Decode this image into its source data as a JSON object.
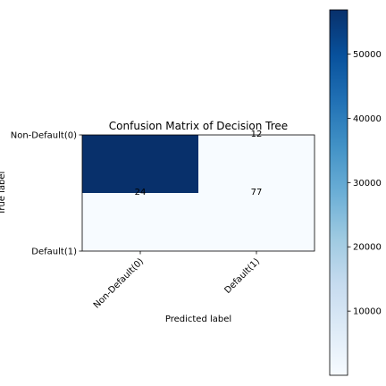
{
  "chart_data": {
    "type": "heatmap",
    "title": "Confusion Matrix of Decision Tree",
    "xlabel": "Predicted label",
    "ylabel": "True label",
    "x_categories": [
      "Non-Default(0)",
      "Default(1)"
    ],
    "y_categories": [
      "Non-Default(0)",
      "Default(1)"
    ],
    "matrix": [
      [
        56874,
        12
      ],
      [
        24,
        77
      ]
    ],
    "cell_labels": [
      [
        "",
        "12"
      ],
      [
        "24",
        "77"
      ]
    ],
    "colormap": "Blues",
    "color_low": "#f7fbff",
    "color_high": "#08306b",
    "colorbar": {
      "ticks": [
        10000,
        20000,
        30000,
        40000,
        50000
      ],
      "tick_labels": [
        "10000",
        "20000",
        "30000",
        "40000",
        "50000"
      ],
      "range": [
        12,
        56874
      ]
    }
  }
}
